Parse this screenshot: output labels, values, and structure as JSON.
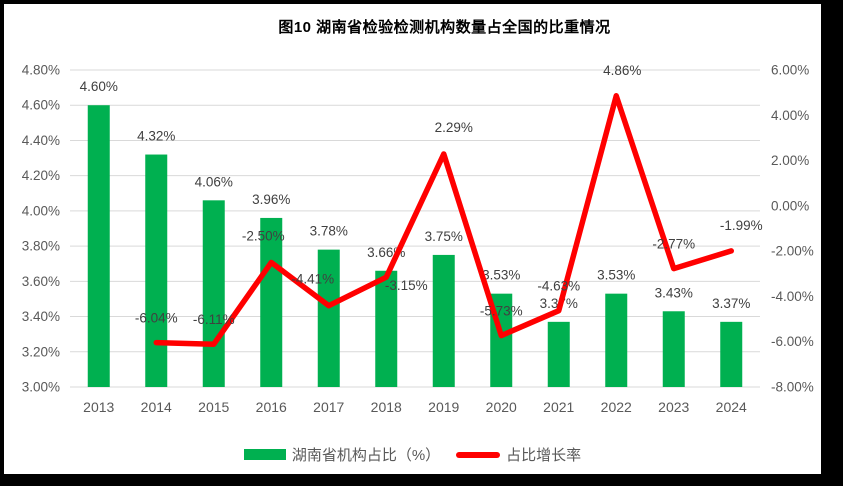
{
  "chart_data": {
    "type": "combo-bar-line",
    "title": "图10  湖南省检验检测机构数量占全国的比重情况",
    "categories": [
      "2013",
      "2014",
      "2015",
      "2016",
      "2017",
      "2018",
      "2019",
      "2020",
      "2021",
      "2022",
      "2023",
      "2024"
    ],
    "series": [
      {
        "name": "湖南省机构占比（%）",
        "type": "bar",
        "axis": "left",
        "color": "#00B050",
        "values": [
          4.6,
          4.32,
          4.06,
          3.96,
          3.78,
          3.66,
          3.75,
          3.53,
          3.37,
          3.53,
          3.43,
          3.37
        ],
        "labels": [
          "4.60%",
          "4.32%",
          "4.06%",
          "3.96%",
          "3.78%",
          "3.66%",
          "3.75%",
          "3.53%",
          "3.37%",
          "3.53%",
          "3.43%",
          "3.37%"
        ]
      },
      {
        "name": "占比增长率",
        "type": "line",
        "axis": "right",
        "color": "#FF0000",
        "values": [
          null,
          -6.04,
          -6.11,
          -2.5,
          -4.41,
          -3.15,
          2.29,
          -5.73,
          -4.63,
          4.86,
          -2.77,
          -1.99
        ],
        "labels": [
          null,
          "-6.04%",
          "-6.11%",
          "-2.50%",
          "-4.41%",
          "-3.15%",
          "2.29%",
          "-5.73%",
          "-4.63%",
          "4.86%",
          "-2.77%",
          "-1.99%"
        ]
      }
    ],
    "left_axis": {
      "min": 3.0,
      "max": 4.8,
      "step": 0.2,
      "ticks": [
        "4.80%",
        "4.60%",
        "4.40%",
        "4.20%",
        "4.00%",
        "3.80%",
        "3.60%",
        "3.40%",
        "3.20%",
        "3.00%"
      ]
    },
    "right_axis": {
      "min": -8.0,
      "max": 6.0,
      "step": 2.0,
      "ticks": [
        "6.00%",
        "4.00%",
        "2.00%",
        "0.00%",
        "-2.00%",
        "-4.00%",
        "-6.00%",
        "-8.00%"
      ]
    },
    "grid": true,
    "legend_position": "bottom",
    "colors": {
      "gridline": "#D9D9D9",
      "axis_text": "#595959",
      "data_label_text": "#404040",
      "title_text": "#000000",
      "frame_border": "#000000"
    }
  }
}
